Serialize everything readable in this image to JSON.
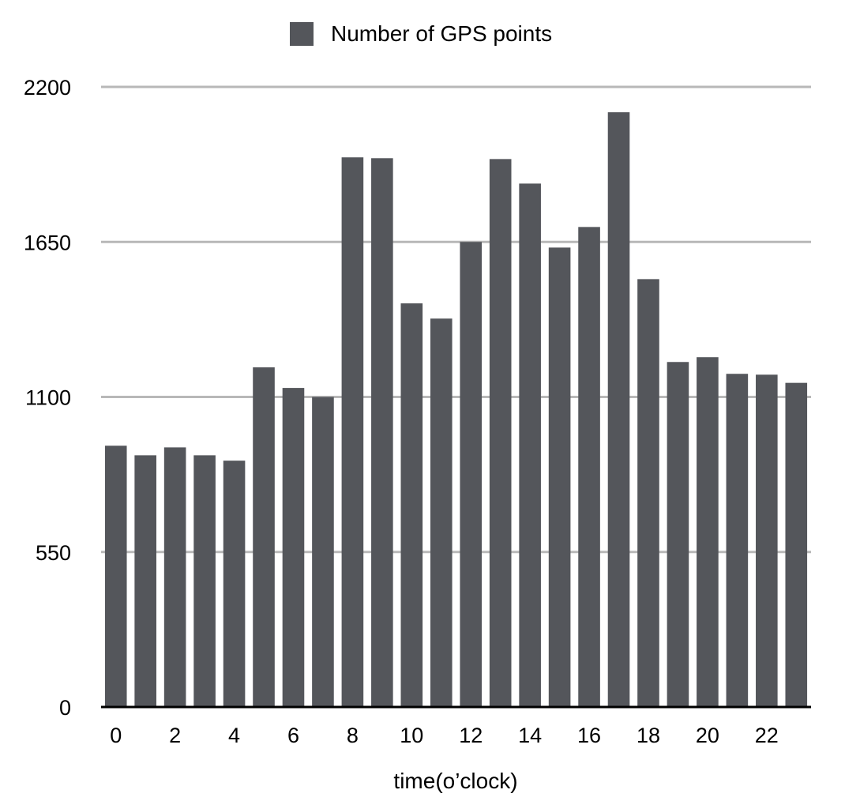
{
  "chart_data": {
    "type": "bar",
    "title": "",
    "xlabel": "time(o’clock)",
    "ylabel": "",
    "legend": {
      "position": "top-center",
      "entries": [
        "Number of GPS points"
      ]
    },
    "categories": [
      "0",
      "1",
      "2",
      "3",
      "4",
      "5",
      "6",
      "7",
      "8",
      "9",
      "10",
      "11",
      "12",
      "13",
      "14",
      "15",
      "16",
      "17",
      "18",
      "19",
      "20",
      "21",
      "22",
      "23"
    ],
    "x_tick_labels": [
      "0",
      "2",
      "4",
      "6",
      "8",
      "10",
      "12",
      "14",
      "16",
      "18",
      "20",
      "22"
    ],
    "y_ticks": [
      0,
      550,
      1100,
      1650,
      2200
    ],
    "y_tick_labels": [
      "0",
      "550",
      "1100",
      "1650",
      "2200"
    ],
    "ylim": [
      0,
      2200
    ],
    "grid": true,
    "series": [
      {
        "name": "Number of GPS points",
        "color": "#54565b",
        "values": [
          927,
          893,
          921,
          893,
          874,
          1205,
          1132,
          1100,
          1950,
          1947,
          1432,
          1378,
          1650,
          1944,
          1857,
          1630,
          1703,
          2110,
          1518,
          1224,
          1241,
          1182,
          1179,
          1150
        ]
      }
    ],
    "colors": {
      "bar": "#54565b",
      "grid": "#b8b8b8",
      "axis": "#000000"
    }
  }
}
